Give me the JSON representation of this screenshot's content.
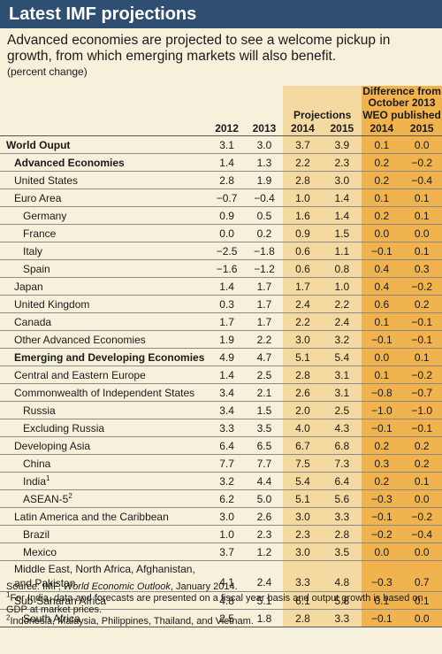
{
  "title": "Latest IMF projections",
  "subtitle": "Advanced economies are projected to see a welcome pickup in growth, from which emerging markets will also benefit.",
  "unit": "(percent change)",
  "header": {
    "projections": "Projections",
    "difference_line1": "Difference from",
    "difference_line2": "October 2013",
    "difference_line3": "WEO published",
    "years": [
      "2012",
      "2013",
      "2014",
      "2015",
      "2014",
      "2015"
    ]
  },
  "rows": [
    {
      "label": "World Ouput",
      "sup": "",
      "v": [
        "3.1",
        "3.0",
        "3.7",
        "3.9",
        "0.1",
        "0.0"
      ]
    },
    {
      "label": "Advanced Economies",
      "sup": "",
      "v": [
        "1.4",
        "1.3",
        "2.2",
        "2.3",
        "0.2",
        "−0.2"
      ]
    },
    {
      "label": "United States",
      "sup": "",
      "v": [
        "2.8",
        "1.9",
        "2.8",
        "3.0",
        "0.2",
        "−0.4"
      ]
    },
    {
      "label": "Euro Area",
      "sup": "",
      "v": [
        "−0.7",
        "−0.4",
        "1.0",
        "1.4",
        "0.1",
        "0.1"
      ]
    },
    {
      "label": "Germany",
      "sup": "",
      "v": [
        "0.9",
        "0.5",
        "1.6",
        "1.4",
        "0.2",
        "0.1"
      ]
    },
    {
      "label": "France",
      "sup": "",
      "v": [
        "0.0",
        "0.2",
        "0.9",
        "1.5",
        "0.0",
        "0.0"
      ]
    },
    {
      "label": "Italy",
      "sup": "",
      "v": [
        "−2.5",
        "−1.8",
        "0.6",
        "1.1",
        "−0.1",
        "0.1"
      ]
    },
    {
      "label": "Spain",
      "sup": "",
      "v": [
        "−1.6",
        "−1.2",
        "0.6",
        "0.8",
        "0.4",
        "0.3"
      ]
    },
    {
      "label": "Japan",
      "sup": "",
      "v": [
        "1.4",
        "1.7",
        "1.7",
        "1.0",
        "0.4",
        "−0.2"
      ]
    },
    {
      "label": "United Kingdom",
      "sup": "",
      "v": [
        "0.3",
        "1.7",
        "2.4",
        "2.2",
        "0.6",
        "0.2"
      ]
    },
    {
      "label": "Canada",
      "sup": "",
      "v": [
        "1.7",
        "1.7",
        "2.2",
        "2.4",
        "0.1",
        "−0.1"
      ]
    },
    {
      "label": "Other Advanced Economies",
      "sup": "",
      "v": [
        "1.9",
        "2.2",
        "3.0",
        "3.2",
        "−0.1",
        "−0.1"
      ]
    },
    {
      "label": "Emerging and Developing Economies",
      "sup": "",
      "v": [
        "4.9",
        "4.7",
        "5.1",
        "5.4",
        "0.0",
        "0.1"
      ]
    },
    {
      "label": "Central and Eastern Europe",
      "sup": "",
      "v": [
        "1.4",
        "2.5",
        "2.8",
        "3.1",
        "0.1",
        "−0.2"
      ]
    },
    {
      "label": "Commonwealth of Independent States",
      "sup": "",
      "v": [
        "3.4",
        "2.1",
        "2.6",
        "3.1",
        "−0.8",
        "−0.7"
      ]
    },
    {
      "label": "Russia",
      "sup": "",
      "v": [
        "3.4",
        "1.5",
        "2.0",
        "2.5",
        "−1.0",
        "−1.0"
      ]
    },
    {
      "label": "Excluding Russia",
      "sup": "",
      "v": [
        "3.3",
        "3.5",
        "4.0",
        "4.3",
        "−0.1",
        "−0.1"
      ]
    },
    {
      "label": "Developing Asia",
      "sup": "",
      "v": [
        "6.4",
        "6.5",
        "6.7",
        "6.8",
        "0.2",
        "0.2"
      ]
    },
    {
      "label": "China",
      "sup": "",
      "v": [
        "7.7",
        "7.7",
        "7.5",
        "7.3",
        "0.3",
        "0.2"
      ]
    },
    {
      "label": "India",
      "sup": "1",
      "v": [
        "3.2",
        "4.4",
        "5.4",
        "6.4",
        "0.2",
        "0.1"
      ]
    },
    {
      "label": "ASEAN-5",
      "sup": "2",
      "v": [
        "6.2",
        "5.0",
        "5.1",
        "5.6",
        "−0.3",
        "0.0"
      ]
    },
    {
      "label": "Latin America and the Caribbean",
      "sup": "",
      "v": [
        "3.0",
        "2.6",
        "3.0",
        "3.3",
        "−0.1",
        "−0.2"
      ]
    },
    {
      "label": "Brazil",
      "sup": "",
      "v": [
        "1.0",
        "2.3",
        "2.3",
        "2.8",
        "−0.2",
        "−0.4"
      ]
    },
    {
      "label": "Mexico",
      "sup": "",
      "v": [
        "3.7",
        "1.2",
        "3.0",
        "3.5",
        "0.0",
        "0.0"
      ]
    },
    {
      "label": "Middle East, North Africa, Afghanistan,",
      "label2": "and Pakistan",
      "sup": "",
      "v": [
        "4.1",
        "2.4",
        "3.3",
        "4.8",
        "−0.3",
        "0.7"
      ]
    },
    {
      "label": "Sub-Saharan Africa",
      "sup": "",
      "v": [
        "4.8",
        "5.1",
        "6.1",
        "5.8",
        "0.1",
        "0.1"
      ]
    },
    {
      "label": "South Africa",
      "sup": "",
      "v": [
        "2.5",
        "1.8",
        "2.8",
        "3.3",
        "−0.1",
        "0.0"
      ]
    }
  ],
  "footer": {
    "source_prefix": "Source: IMF, ",
    "source_title": "World Economic Outlook",
    "source_suffix": ", January 2014.",
    "note1": "For India, data and forecasts are presented on a fiscal year basis and output growth is based on GDP at market prices.",
    "note2": "Indonesia, Malaysia, Philippines, Thailand, and Vietnam."
  },
  "colors": {
    "title_bar": "#2f4f72",
    "background": "#f7f1db",
    "projections_bg": "#f4d9a0",
    "difference_bg": "#f0b34e"
  }
}
